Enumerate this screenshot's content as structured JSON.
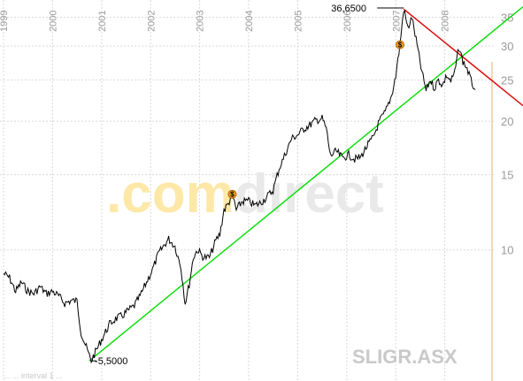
{
  "chart_data": {
    "type": "line",
    "symbol": "SLIGR.ASX",
    "watermark": {
      "left": ".com",
      "right": "direct"
    },
    "footer": "... ... interval 1 ...",
    "y_scale": "log",
    "ylim": [
      5.2,
      37
    ],
    "y_ticks": [
      10,
      15,
      20,
      25,
      30,
      35
    ],
    "x_ticks": [
      "1999",
      "2000",
      "2001",
      "2002",
      "2003",
      "2004",
      "2005",
      "2006",
      "2007",
      "2008"
    ],
    "xlim": [
      "1999-01-01",
      "2008-12-31"
    ],
    "annotations": {
      "high": {
        "label": "36,6500",
        "date": "2007-03-01",
        "value": 36.65
      },
      "low": {
        "label": "5,5000",
        "date": "2000-10-15",
        "value": 5.5
      }
    },
    "event_markers": [
      {
        "label": "$",
        "date": "2003-09-01",
        "value": 13.5
      },
      {
        "label": "$",
        "date": "2007-02-01",
        "value": 30.2
      }
    ],
    "trend_lines": [
      {
        "color": "#00dd00",
        "from": {
          "date": "2000-10-01",
          "value": 5.5
        },
        "to": {
          "date": "2008-12-31",
          "value": 32.6
        }
      },
      {
        "color": "#dd0000",
        "from": {
          "date": "2007-03-01",
          "value": 36.6
        },
        "to": {
          "date": "2008-12-31",
          "value": 24.7
        }
      }
    ],
    "series": [
      {
        "points": [
          [
            "1999-01-01",
            8.8
          ],
          [
            "1999-02-15",
            8.6
          ],
          [
            "1999-04-01",
            8.0
          ],
          [
            "1999-05-15",
            8.4
          ],
          [
            "1999-07-01",
            8.0
          ],
          [
            "1999-08-15",
            7.9
          ],
          [
            "1999-10-01",
            8.2
          ],
          [
            "1999-11-15",
            7.9
          ],
          [
            "2000-01-01",
            8.0
          ],
          [
            "2000-02-15",
            7.8
          ],
          [
            "2000-04-01",
            7.5
          ],
          [
            "2000-05-15",
            7.6
          ],
          [
            "2000-07-01",
            7.6
          ],
          [
            "2000-08-01",
            6.4
          ],
          [
            "2000-09-01",
            6.0
          ],
          [
            "2000-10-15",
            5.5
          ],
          [
            "2000-12-01",
            5.9
          ],
          [
            "2001-01-15",
            6.3
          ],
          [
            "2001-03-01",
            6.7
          ],
          [
            "2001-04-15",
            6.9
          ],
          [
            "2001-06-01",
            7.0
          ],
          [
            "2001-07-15",
            7.2
          ],
          [
            "2001-09-01",
            7.4
          ],
          [
            "2001-10-15",
            7.8
          ],
          [
            "2001-12-01",
            8.4
          ],
          [
            "2002-01-15",
            9.0
          ],
          [
            "2002-03-01",
            9.8
          ],
          [
            "2002-04-15",
            10.3
          ],
          [
            "2002-05-15",
            10.6
          ],
          [
            "2002-07-01",
            10.2
          ],
          [
            "2002-08-15",
            9.1
          ],
          [
            "2002-09-15",
            7.5
          ],
          [
            "2002-10-15",
            8.3
          ],
          [
            "2002-11-15",
            9.6
          ],
          [
            "2002-12-15",
            10.0
          ],
          [
            "2003-02-01",
            9.6
          ],
          [
            "2003-03-15",
            9.6
          ],
          [
            "2003-05-01",
            10.5
          ],
          [
            "2003-06-01",
            10.9
          ],
          [
            "2003-07-01",
            12.4
          ],
          [
            "2003-08-01",
            12.8
          ],
          [
            "2003-09-01",
            13.5
          ],
          [
            "2003-10-01",
            12.4
          ],
          [
            "2003-11-15",
            13.0
          ],
          [
            "2004-01-01",
            13.0
          ],
          [
            "2004-02-15",
            12.7
          ],
          [
            "2004-04-01",
            12.9
          ],
          [
            "2004-05-15",
            13.3
          ],
          [
            "2004-07-01",
            13.8
          ],
          [
            "2004-08-15",
            15.5
          ],
          [
            "2004-10-01",
            16.8
          ],
          [
            "2004-11-15",
            18.2
          ],
          [
            "2005-01-01",
            18.6
          ],
          [
            "2005-02-15",
            19.2
          ],
          [
            "2005-04-01",
            19.6
          ],
          [
            "2005-05-15",
            20.1
          ],
          [
            "2005-07-01",
            20.3
          ],
          [
            "2005-08-01",
            19.2
          ],
          [
            "2005-09-01",
            16.6
          ],
          [
            "2005-10-15",
            17.0
          ],
          [
            "2005-12-01",
            16.4
          ],
          [
            "2006-01-15",
            16.7
          ],
          [
            "2006-03-01",
            16.3
          ],
          [
            "2006-04-15",
            16.5
          ],
          [
            "2006-06-01",
            17.5
          ],
          [
            "2006-07-15",
            18.3
          ],
          [
            "2006-09-01",
            20.0
          ],
          [
            "2006-10-15",
            21.0
          ],
          [
            "2006-12-01",
            23.0
          ],
          [
            "2007-01-01",
            25.6
          ],
          [
            "2007-02-01",
            30.2
          ],
          [
            "2007-03-01",
            36.6
          ],
          [
            "2007-04-01",
            33.0
          ],
          [
            "2007-05-01",
            35.0
          ],
          [
            "2007-06-01",
            31.0
          ],
          [
            "2007-07-15",
            26.0
          ],
          [
            "2007-08-15",
            23.6
          ],
          [
            "2007-09-15",
            25.0
          ],
          [
            "2007-10-15",
            23.9
          ],
          [
            "2007-11-15",
            25.0
          ],
          [
            "2007-12-15",
            24.3
          ],
          [
            "2008-01-15",
            25.6
          ],
          [
            "2008-02-15",
            24.8
          ],
          [
            "2008-03-15",
            26.0
          ],
          [
            "2008-04-15",
            29.8
          ],
          [
            "2008-05-15",
            27.6
          ],
          [
            "2008-06-15",
            26.6
          ],
          [
            "2008-07-15",
            24.8
          ],
          [
            "2008-08-15",
            23.7
          ]
        ]
      }
    ],
    "colors": {
      "price": "#000000",
      "support": "#00dd00",
      "resistance": "#dd0000",
      "watermark_left": "#fde8a8",
      "watermark_right": "#e9e9e9",
      "today_line": "#f0c8a0"
    }
  }
}
